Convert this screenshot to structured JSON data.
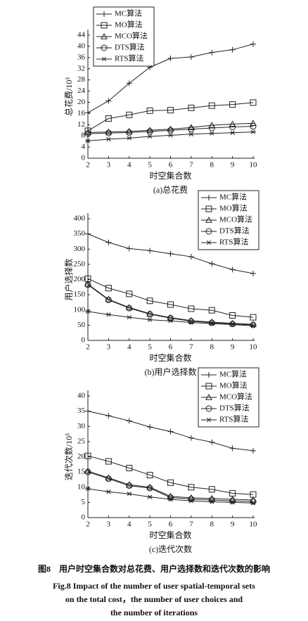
{
  "chart_data": [
    {
      "type": "line",
      "caption": "(a)总花费",
      "xlabel": "时空集合数",
      "ylabel": "总花费/10³",
      "x": [
        2,
        3,
        4,
        5,
        6,
        7,
        8,
        9,
        10
      ],
      "xlim": [
        2,
        10
      ],
      "xticks": [
        2,
        3,
        4,
        5,
        6,
        7,
        8,
        9,
        10
      ],
      "ylim": [
        0,
        44
      ],
      "yticks": [
        0,
        4,
        8,
        12,
        16,
        20,
        24,
        28,
        32,
        36,
        40,
        44
      ],
      "legend": "upper left",
      "series": [
        {
          "name": "MC算法",
          "color": "#222",
          "marker": "plus",
          "values": [
            16.3,
            20.5,
            26.8,
            32.5,
            35.7,
            36.2,
            37.8,
            38.8,
            40.8
          ]
        },
        {
          "name": "MO算法",
          "color": "#222",
          "marker": "square",
          "values": [
            9.8,
            14.2,
            15.5,
            17.0,
            17.2,
            18.0,
            18.8,
            19.2,
            19.9
          ]
        },
        {
          "name": "MCO算法",
          "color": "#222",
          "marker": "triangle",
          "values": [
            9.2,
            9.4,
            9.6,
            10.0,
            10.4,
            11.0,
            11.8,
            12.2,
            12.5
          ]
        },
        {
          "name": "DTS算法",
          "color": "#222",
          "marker": "circle",
          "values": [
            8.8,
            9.0,
            9.2,
            9.6,
            10.0,
            10.4,
            10.8,
            11.2,
            11.4
          ]
        },
        {
          "name": "RTS算法",
          "color": "#222",
          "marker": "asterisk",
          "values": [
            6.2,
            6.8,
            7.2,
            7.8,
            8.2,
            8.6,
            8.9,
            9.1,
            9.4
          ]
        }
      ]
    },
    {
      "type": "line",
      "caption": "(b)用户选择数",
      "xlabel": "时空集合数",
      "ylabel": "用户选择数",
      "x": [
        2,
        3,
        4,
        5,
        6,
        7,
        8,
        9,
        10
      ],
      "xlim": [
        2,
        10
      ],
      "xticks": [
        2,
        3,
        4,
        5,
        6,
        7,
        8,
        9,
        10
      ],
      "ylim": [
        0,
        400
      ],
      "yticks": [
        0,
        50,
        100,
        150,
        200,
        250,
        300,
        350,
        400
      ],
      "legend": "upper right",
      "series": [
        {
          "name": "MC算法",
          "color": "#222",
          "marker": "plus",
          "values": [
            350,
            322,
            302,
            295,
            285,
            275,
            252,
            233,
            220
          ]
        },
        {
          "name": "MO算法",
          "color": "#222",
          "marker": "square",
          "values": [
            203,
            172,
            153,
            130,
            118,
            104,
            99,
            82,
            76
          ]
        },
        {
          "name": "MCO算法",
          "color": "#222",
          "marker": "triangle",
          "values": [
            185,
            135,
            108,
            88,
            75,
            65,
            60,
            56,
            53
          ]
        },
        {
          "name": "DTS算法",
          "color": "#222",
          "marker": "circle",
          "values": [
            183,
            133,
            106,
            86,
            73,
            63,
            58,
            54,
            51
          ]
        },
        {
          "name": "RTS算法",
          "color": "#222",
          "marker": "asterisk",
          "values": [
            95,
            85,
            76,
            68,
            64,
            59,
            55,
            52,
            48
          ]
        }
      ]
    },
    {
      "type": "line",
      "caption": "(c)迭代次数",
      "xlabel": "时空集合数",
      "ylabel": "迭代次数/10⁵",
      "x": [
        2,
        3,
        4,
        5,
        6,
        7,
        8,
        9,
        10
      ],
      "xlim": [
        2,
        10
      ],
      "xticks": [
        2,
        3,
        4,
        5,
        6,
        7,
        8,
        9,
        10
      ],
      "ylim": [
        0,
        40
      ],
      "yticks": [
        0,
        5,
        10,
        15,
        20,
        25,
        30,
        35,
        40
      ],
      "legend": "upper right",
      "series": [
        {
          "name": "MC算法",
          "color": "#222",
          "marker": "plus",
          "values": [
            35,
            33.5,
            31.8,
            29.8,
            28.3,
            26.2,
            24.8,
            22.8,
            22
          ]
        },
        {
          "name": "MO算法",
          "color": "#222",
          "marker": "square",
          "values": [
            20.3,
            18.5,
            16.3,
            14,
            11.5,
            10,
            9.3,
            8,
            7.6
          ]
        },
        {
          "name": "MCO算法",
          "color": "#222",
          "marker": "triangle",
          "values": [
            15.3,
            13.1,
            10.8,
            10,
            7,
            6.5,
            6.3,
            6,
            5.8
          ]
        },
        {
          "name": "DTS算法",
          "color": "#222",
          "marker": "circle",
          "values": [
            15,
            12.8,
            10.5,
            9.7,
            6.6,
            6.1,
            5.8,
            5.5,
            5.3
          ]
        },
        {
          "name": "RTS算法",
          "color": "#222",
          "marker": "asterisk",
          "values": [
            9.5,
            8.5,
            7.8,
            6.8,
            6.0,
            5.5,
            5.2,
            5.0,
            4.8
          ]
        }
      ]
    }
  ],
  "figure_caption": {
    "zh": "图8　用户时空集合数对总花费、用户选择数和迭代次数的影响",
    "en": [
      "Fig.8   Impact of the number of user spatial-temporal sets",
      "on the total cost，the number of user choices and",
      "the number of iterations"
    ]
  }
}
